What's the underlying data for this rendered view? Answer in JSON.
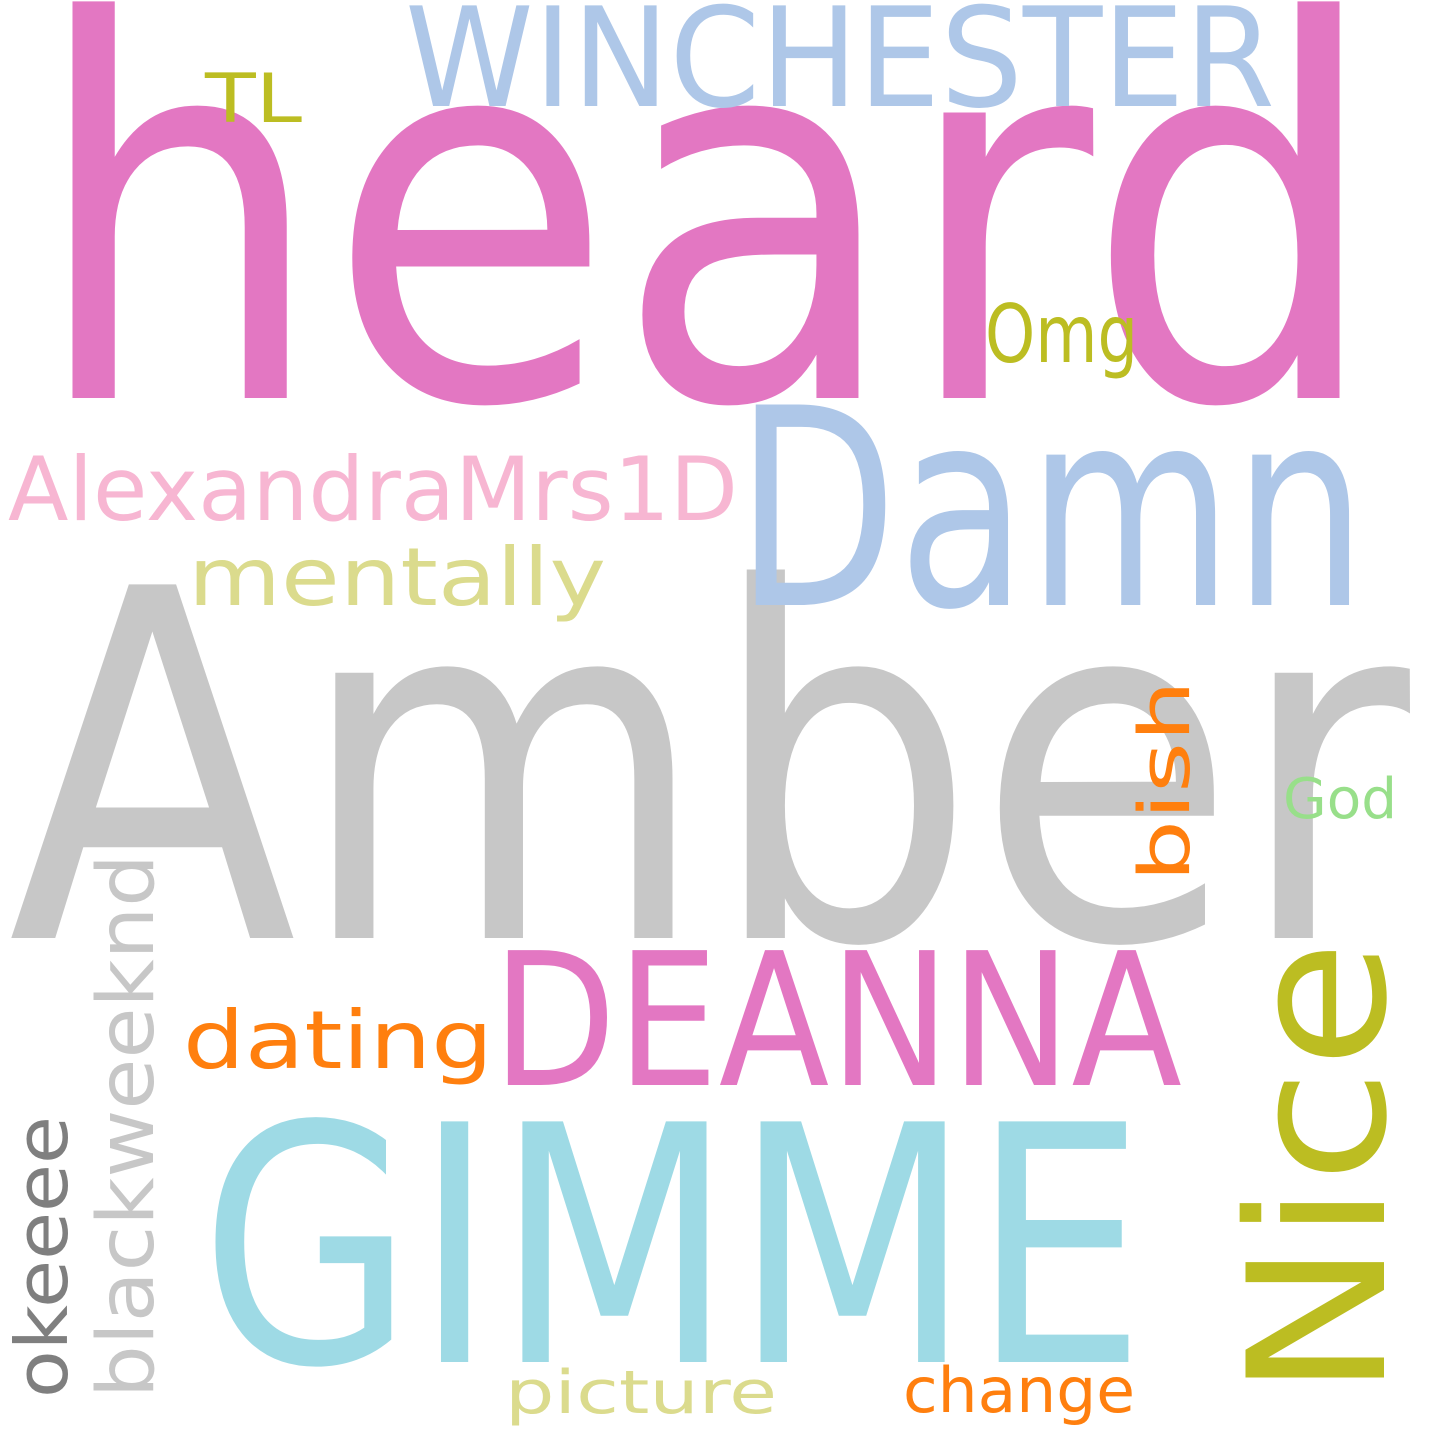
{
  "word_cloud": {
    "background": "#ffffff",
    "words": [
      {
        "text": "heard",
        "color": "#e377c2"
      },
      {
        "text": "Amber",
        "color": "#c7c7c7"
      },
      {
        "text": "GIMME",
        "color": "#9edae5"
      },
      {
        "text": "Damn",
        "color": "#aec7e8"
      },
      {
        "text": "Nice",
        "color": "#bcbd22"
      },
      {
        "text": "DEANNA",
        "color": "#e377c2"
      },
      {
        "text": "WINCHESTER",
        "color": "#aec7e8"
      },
      {
        "text": "AlexandraMrs1D",
        "color": "#f7b6d2"
      },
      {
        "text": "mentally",
        "color": "#dbdb8d"
      },
      {
        "text": "dating",
        "color": "#ff7f0e"
      },
      {
        "text": "blackweeknd",
        "color": "#c7c7c7"
      },
      {
        "text": "okeeee",
        "color": "#7f7f7f"
      },
      {
        "text": "bish",
        "color": "#ff7f0e"
      },
      {
        "text": "Omg",
        "color": "#bcbd22"
      },
      {
        "text": "picture",
        "color": "#dbdb8d"
      },
      {
        "text": "change",
        "color": "#ff7f0e"
      },
      {
        "text": "God",
        "color": "#98df8a"
      },
      {
        "text": "TL",
        "color": "#bcbd22"
      }
    ]
  }
}
